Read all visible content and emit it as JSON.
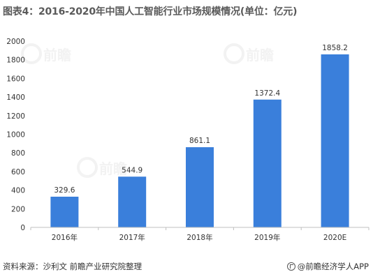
{
  "title": "图表4：2016-2020年中国人工智能行业市场规模情况(单位：亿元)",
  "source": "资料来源：沙利文 前瞻产业研究院整理",
  "brand": "@前瞻经济学人APP",
  "watermark": "前瞻",
  "colors": {
    "bar": "#3a7fdb",
    "axis": "#bfbfbf",
    "text": "#333333"
  },
  "chart_data": {
    "type": "bar",
    "title": "图表4：2016-2020年中国人工智能行业市场规模情况(单位：亿元)",
    "categories": [
      "2016年",
      "2017年",
      "2018年",
      "2019年",
      "2020E"
    ],
    "values": [
      329.6,
      544.9,
      861.1,
      1372.4,
      1858.2
    ],
    "value_labels": [
      "329.6",
      "544.9",
      "861.1",
      "1372.4",
      "1858.2"
    ],
    "xlabel": "",
    "ylabel": "",
    "ylim": [
      0,
      2000
    ],
    "yticks": [
      0,
      200,
      400,
      600,
      800,
      1000,
      1200,
      1400,
      1600,
      1800,
      2000
    ],
    "grid": false,
    "legend": "none"
  }
}
